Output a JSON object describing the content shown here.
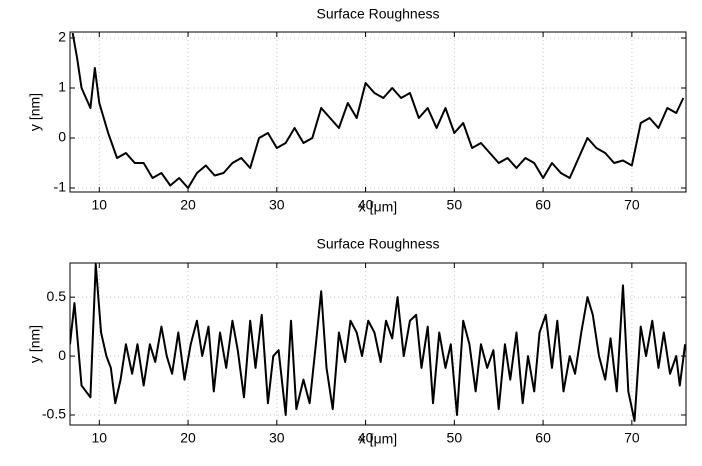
{
  "chart_data": [
    {
      "type": "line",
      "title": "Surface Roughness",
      "xlabel": "x [μm]",
      "ylabel": "y [nm]",
      "color": "#000000",
      "grid": true,
      "xlim": [
        6.7,
        76.1
      ],
      "ylim": [
        -1.08,
        2.12
      ],
      "xticks": [
        10,
        20,
        30,
        40,
        50,
        60,
        70
      ],
      "yticks": [
        -1,
        0,
        1,
        2
      ],
      "x": [
        7,
        7.5,
        8,
        9,
        9.5,
        10,
        11,
        12,
        13,
        14,
        15,
        16,
        17,
        18,
        19,
        20,
        21,
        22,
        23,
        24,
        25,
        26,
        27,
        28,
        29,
        30,
        31,
        32,
        33,
        34,
        35,
        36,
        37,
        38,
        39,
        40,
        41,
        42,
        43,
        44,
        45,
        46,
        47,
        48,
        49,
        50,
        51,
        52,
        53,
        54,
        55,
        56,
        57,
        58,
        59,
        60,
        61,
        62,
        63,
        64,
        65,
        66,
        67,
        68,
        69,
        70,
        71,
        72,
        73,
        74,
        75,
        75.8
      ],
      "values": [
        2.1,
        1.6,
        1.0,
        0.6,
        1.4,
        0.7,
        0.1,
        -0.4,
        -0.3,
        -0.5,
        -0.5,
        -0.8,
        -0.7,
        -0.95,
        -0.8,
        -1.0,
        -0.7,
        -0.55,
        -0.75,
        -0.7,
        -0.5,
        -0.4,
        -0.6,
        0.0,
        0.1,
        -0.2,
        -0.1,
        0.2,
        -0.1,
        0.0,
        0.6,
        0.4,
        0.2,
        0.7,
        0.4,
        1.1,
        0.9,
        0.8,
        1.0,
        0.8,
        0.9,
        0.4,
        0.6,
        0.2,
        0.6,
        0.1,
        0.3,
        -0.2,
        -0.1,
        -0.3,
        -0.5,
        -0.4,
        -0.6,
        -0.4,
        -0.5,
        -0.8,
        -0.5,
        -0.7,
        -0.8,
        -0.4,
        0.0,
        -0.2,
        -0.3,
        -0.5,
        -0.45,
        -0.55,
        0.3,
        0.4,
        0.2,
        0.6,
        0.5,
        0.8
      ]
    },
    {
      "type": "line",
      "title": "Surface Roughness",
      "xlabel": "x [μm]",
      "ylabel": "y [nm]",
      "color": "#000000",
      "grid": true,
      "xlim": [
        6.7,
        76.1
      ],
      "ylim": [
        -0.585,
        0.79
      ],
      "xticks": [
        10,
        20,
        30,
        40,
        50,
        60,
        70
      ],
      "yticks": [
        -0.5,
        0,
        0.5
      ],
      "x": [
        6.7,
        7.2,
        8,
        8.5,
        9,
        9.6,
        10.2,
        10.8,
        11.3,
        11.8,
        12.4,
        13,
        13.7,
        14.3,
        15,
        15.7,
        16.3,
        17,
        17.6,
        18.2,
        18.9,
        19.6,
        20.3,
        21,
        21.6,
        22.3,
        22.9,
        23.6,
        24.3,
        25,
        25.6,
        26.3,
        27,
        27.6,
        28.3,
        29,
        29.6,
        30.2,
        31,
        31.6,
        32.2,
        33,
        33.7,
        34.4,
        35,
        35.6,
        36.3,
        37,
        37.7,
        38.3,
        39,
        39.6,
        40.3,
        41,
        41.7,
        42.3,
        43,
        43.6,
        44.3,
        45,
        45.7,
        46.3,
        47,
        47.6,
        48.3,
        49,
        49.6,
        50.3,
        51,
        51.7,
        52.4,
        53,
        53.7,
        54.4,
        55,
        55.7,
        56.3,
        57,
        57.7,
        58.3,
        59,
        59.6,
        60.3,
        61,
        61.6,
        62.3,
        63,
        63.6,
        64.3,
        65,
        65.6,
        66.3,
        67,
        67.6,
        68.3,
        69,
        69.6,
        70.3,
        71,
        71.6,
        72.3,
        73,
        73.6,
        74.3,
        75,
        75.4,
        76
      ],
      "values": [
        0.1,
        0.45,
        -0.25,
        -0.3,
        -0.35,
        0.78,
        0.2,
        0.0,
        -0.1,
        -0.4,
        -0.2,
        0.1,
        -0.15,
        0.1,
        -0.25,
        0.1,
        -0.05,
        0.25,
        0.0,
        -0.15,
        0.2,
        -0.2,
        0.1,
        0.3,
        0.0,
        0.25,
        -0.3,
        0.2,
        -0.1,
        0.3,
        0.05,
        -0.35,
        0.3,
        -0.1,
        0.35,
        -0.4,
        0.0,
        0.05,
        -0.5,
        0.3,
        -0.45,
        -0.2,
        -0.4,
        0.1,
        0.55,
        -0.1,
        -0.45,
        0.2,
        -0.05,
        0.3,
        0.2,
        0.0,
        0.3,
        0.2,
        -0.05,
        0.3,
        0.15,
        0.5,
        0.0,
        0.3,
        0.35,
        -0.1,
        0.25,
        -0.4,
        0.2,
        -0.1,
        0.1,
        -0.5,
        0.3,
        0.1,
        -0.3,
        0.1,
        -0.1,
        0.05,
        -0.45,
        0.1,
        -0.2,
        0.2,
        -0.4,
        0.0,
        -0.3,
        0.2,
        0.35,
        -0.1,
        0.3,
        -0.3,
        0.0,
        -0.15,
        0.2,
        0.5,
        0.35,
        0.0,
        -0.2,
        0.15,
        -0.3,
        0.6,
        -0.3,
        -0.55,
        0.25,
        0.0,
        0.3,
        -0.1,
        0.2,
        -0.15,
        0.0,
        -0.25,
        0.1
      ]
    }
  ]
}
